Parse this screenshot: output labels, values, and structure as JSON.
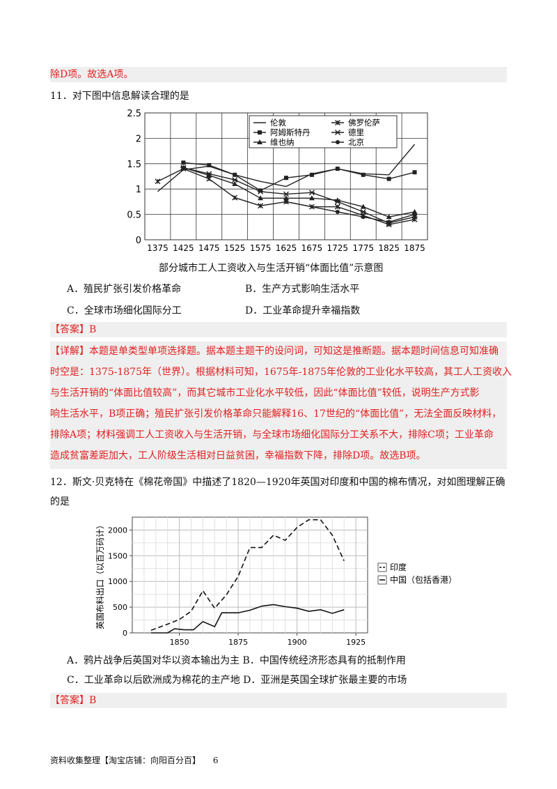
{
  "prev_tail": "除D项。故选A项。",
  "q11": {
    "stem": "11．对下图中信息解读合理的是",
    "chart_caption": "部分城市工人工资收入与生活开销“体面比值”示意图",
    "options": {
      "A": "A．殖民扩张引发价格革命",
      "B": "B．生产方式影响生活水平",
      "C": "C．全球市场细化国际分工",
      "D": "D．工业革命提升幸福指数"
    },
    "answer_label": "【答案】B",
    "explain_lines": [
      "【详解】本题是单类型单项选择题。据本题主题干的设问词，可知这是推断题。据本题时间信息可知准确",
      "时空是：1375-1875年（世界）。根据材料可知，1675年-1875年伦敦的工业化水平较高，其工人工资收入",
      "与生活开销的“体面比值较高”，而其它城市工业化水平较低，因此“体面比值”较低，说明生产方式影",
      "响生活水平，B项正确；殖民扩张引发价格革命只能解释16、17世纪的“体面比值”，无法全面反映材料，",
      "排除A项；材料强调工人工资收入与生活开销，与全球市场细化国际分工关系不大，排除C项；工业革命",
      "造成贫富差距加大，工人阶级生活相对日益贫困，幸福指数下降，排除D项。故选B项。"
    ]
  },
  "q12": {
    "stem_line1": "12．斯文·贝克特在《棉花帝国》中描述了1820—1920年英国对印度和中国的棉布情况，对如图理解正确",
    "stem_line2": "的是",
    "options": {
      "AB": "A．鸦片战争后英国对华以资本输出为主 B．中国传统经济形态具有的抵制作用",
      "CD": "C．工业革命以后欧洲成为棉花的主产地 D．亚洲是英国全球扩张最主要的市场"
    },
    "answer_label": "【答案】B"
  },
  "footer": {
    "text": "资料收集整理【淘宝店铺：向阳百分百】",
    "page": "6"
  },
  "chart_data": [
    {
      "type": "line",
      "title": "",
      "xlabel": "",
      "ylabel": "",
      "x": [
        1375,
        1425,
        1475,
        1525,
        1575,
        1625,
        1675,
        1725,
        1775,
        1825,
        1875
      ],
      "x_tick_labels": [
        "1375",
        "1425",
        "1475",
        "1525",
        "1575",
        "1625",
        "1675",
        "1725",
        "1775",
        "1825",
        "1875"
      ],
      "y_ticks": [
        "0",
        "0.5",
        "1",
        "1.5",
        "2",
        "2.5"
      ],
      "ylim": [
        0,
        2.5
      ],
      "grid": true,
      "legend_position": "top",
      "series": [
        {
          "name": "伦敦",
          "marker": "none",
          "values": [
            0.95,
            1.38,
            1.45,
            1.28,
            1.15,
            1.05,
            1.3,
            1.4,
            1.3,
            1.28,
            1.88
          ]
        },
        {
          "name": "阿姆斯特丹",
          "marker": "square",
          "values": [
            null,
            1.52,
            1.47,
            1.28,
            0.97,
            1.22,
            1.28,
            1.4,
            1.28,
            1.2,
            1.33
          ]
        },
        {
          "name": "维也纳",
          "marker": "triangle",
          "values": [
            null,
            1.42,
            1.27,
            1.1,
            0.82,
            0.82,
            0.82,
            0.78,
            0.65,
            0.45,
            0.55
          ]
        },
        {
          "name": "佛罗伦萨",
          "marker": "cross",
          "values": [
            1.15,
            1.4,
            1.2,
            0.83,
            0.67,
            0.75,
            0.65,
            0.65,
            0.48,
            0.3,
            0.4
          ]
        },
        {
          "name": "德里",
          "marker": "x",
          "values": [
            null,
            1.42,
            1.3,
            1.18,
            0.95,
            0.9,
            0.93,
            0.75,
            0.55,
            0.33,
            0.45
          ]
        },
        {
          "name": "北京",
          "marker": "circle",
          "values": [
            null,
            null,
            null,
            null,
            null,
            0.75,
            null,
            0.55,
            0.45,
            0.35,
            0.5
          ]
        }
      ]
    },
    {
      "type": "line",
      "title": "",
      "xlabel": "",
      "ylabel": "英国布料出口（以百万码计）",
      "x_ticks": [
        1850,
        1875,
        1900,
        1925
      ],
      "y_ticks": [
        0,
        500,
        1000,
        1500,
        2000
      ],
      "xlim": [
        1830,
        1930
      ],
      "ylim": [
        0,
        2250
      ],
      "grid": true,
      "legend_position": "right",
      "series": [
        {
          "name": "印度",
          "style": "dashed",
          "x": [
            1838,
            1845,
            1850,
            1855,
            1860,
            1865,
            1870,
            1875,
            1880,
            1885,
            1890,
            1895,
            1900,
            1905,
            1910,
            1915,
            1920
          ],
          "values": [
            50,
            170,
            260,
            420,
            820,
            480,
            740,
            1100,
            1660,
            1660,
            1900,
            1800,
            2050,
            2200,
            2200,
            1900,
            1400
          ]
        },
        {
          "name": "中国（包括香港）",
          "style": "solid",
          "x": [
            1838,
            1845,
            1848,
            1852,
            1856,
            1860,
            1865,
            1868,
            1875,
            1880,
            1885,
            1890,
            1895,
            1900,
            1905,
            1910,
            1915,
            1920
          ],
          "values": [
            0,
            0,
            80,
            60,
            60,
            220,
            120,
            390,
            390,
            440,
            520,
            550,
            510,
            480,
            420,
            450,
            380,
            450
          ]
        }
      ]
    }
  ]
}
